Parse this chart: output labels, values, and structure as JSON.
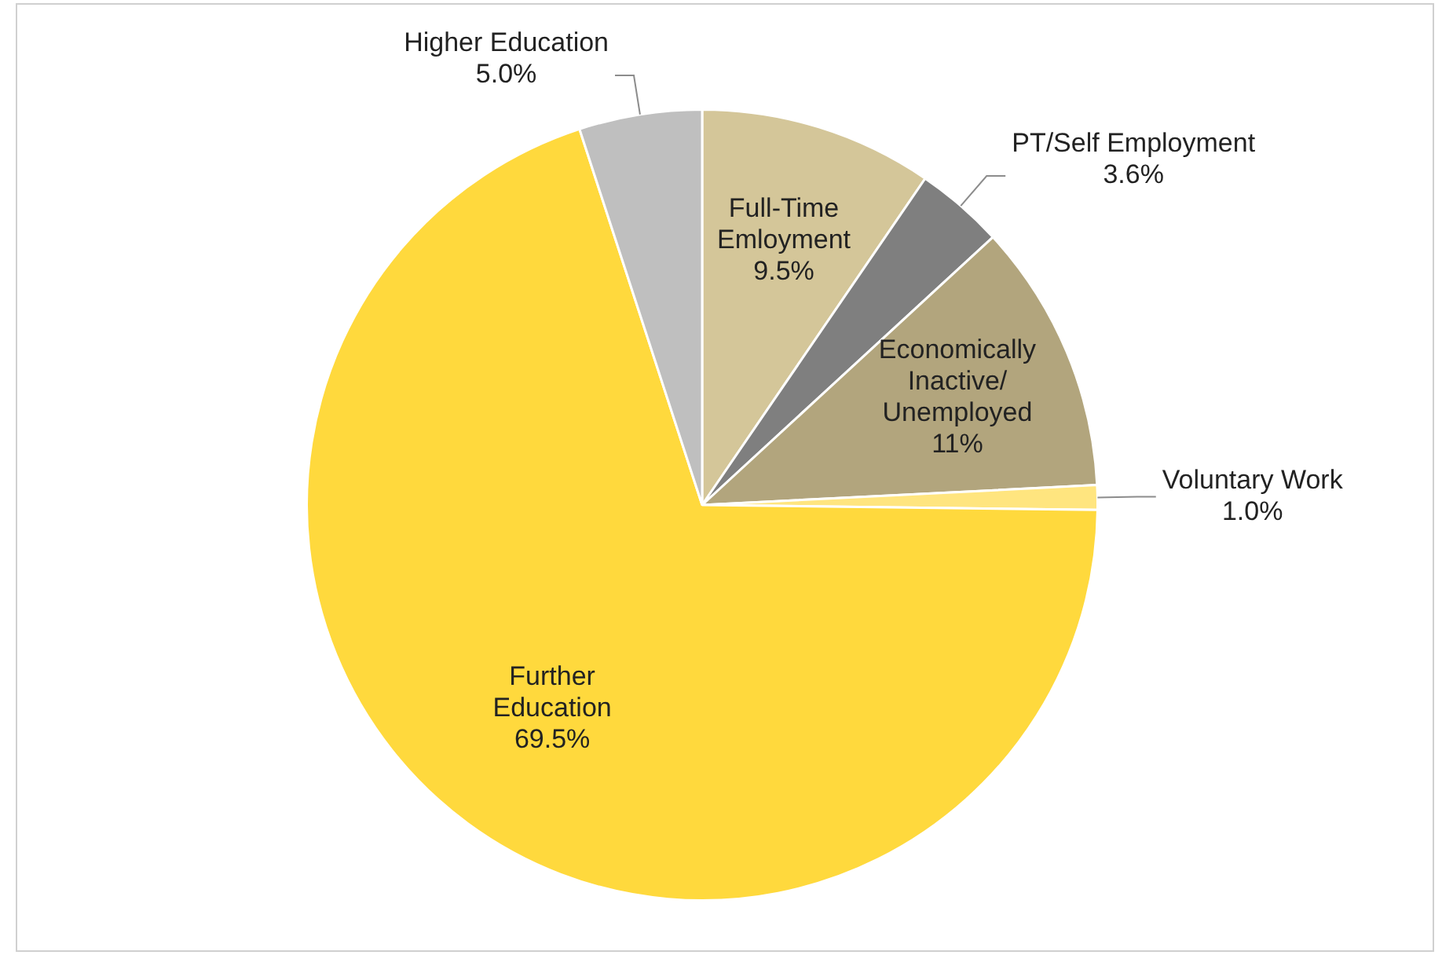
{
  "chart_data": {
    "type": "pie",
    "categories": [
      "Full-Time Emloyment",
      "PT/Self Employment",
      "Economically Inactive/ Unemployed",
      "Voluntary Work",
      "Further Education",
      "Higher Education"
    ],
    "values": [
      9.5,
      3.6,
      11,
      1.0,
      69.5,
      5.0
    ],
    "value_labels": [
      "9.5%",
      "3.6%",
      "11%",
      "1.0%",
      "69.5%",
      "5.0%"
    ],
    "colors": [
      "#d4c699",
      "#7f7f7f",
      "#b2a57d",
      "#ffe57f",
      "#ffd93d",
      "#bfbfbf"
    ],
    "legend": false
  }
}
